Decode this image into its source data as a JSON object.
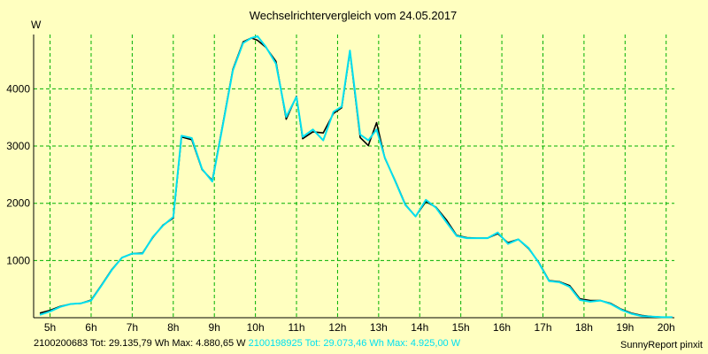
{
  "chart_data": {
    "type": "line",
    "title": "Wechselrichtervergleich vom 24.05.2017",
    "ylabel": "W",
    "xlabel": "",
    "xlim": [
      4.6,
      20.2
    ],
    "ylim": [
      0,
      4950
    ],
    "grid": true,
    "x_ticks": [
      {
        "v": 5,
        "label": "5h"
      },
      {
        "v": 6,
        "label": "6h"
      },
      {
        "v": 7,
        "label": "7h"
      },
      {
        "v": 8,
        "label": "8h"
      },
      {
        "v": 9,
        "label": "9h"
      },
      {
        "v": 10,
        "label": "10h"
      },
      {
        "v": 11,
        "label": "11h"
      },
      {
        "v": 12,
        "label": "12h"
      },
      {
        "v": 13,
        "label": "13h"
      },
      {
        "v": 14,
        "label": "14h"
      },
      {
        "v": 15,
        "label": "15h"
      },
      {
        "v": 16,
        "label": "16h"
      },
      {
        "v": 17,
        "label": "17h"
      },
      {
        "v": 18,
        "label": "18h"
      },
      {
        "v": 19,
        "label": "19h"
      },
      {
        "v": 20,
        "label": "20h"
      }
    ],
    "y_ticks": [
      {
        "v": 1000,
        "label": "1000"
      },
      {
        "v": 2000,
        "label": "2000"
      },
      {
        "v": 3000,
        "label": "3000"
      },
      {
        "v": 4000,
        "label": "4000"
      }
    ],
    "x": [
      4.75,
      5.0,
      5.25,
      5.5,
      5.75,
      6.0,
      6.25,
      6.5,
      6.75,
      7.0,
      7.25,
      7.5,
      7.75,
      8.0,
      8.2,
      8.45,
      8.7,
      8.95,
      9.2,
      9.45,
      9.7,
      9.9,
      10.05,
      10.25,
      10.5,
      10.75,
      11.0,
      11.15,
      11.4,
      11.65,
      11.9,
      12.1,
      12.3,
      12.55,
      12.75,
      12.95,
      13.15,
      13.4,
      13.65,
      13.9,
      14.15,
      14.4,
      14.65,
      14.9,
      15.15,
      15.4,
      15.65,
      15.9,
      16.15,
      16.4,
      16.65,
      16.9,
      17.15,
      17.4,
      17.65,
      17.9,
      18.15,
      18.4,
      18.65,
      18.9,
      19.15,
      19.4,
      19.65,
      19.9,
      20.15
    ],
    "series": [
      {
        "name": "2100200683",
        "color": "#000000",
        "values": [
          80,
          130,
          200,
          240,
          250,
          310,
          570,
          840,
          1050,
          1120,
          1130,
          1400,
          1620,
          1740,
          3160,
          3110,
          2590,
          2400,
          3360,
          4340,
          4820,
          4890,
          4850,
          4730,
          4480,
          3470,
          3870,
          3130,
          3250,
          3230,
          3570,
          3670,
          4650,
          3150,
          3010,
          3410,
          2790,
          2400,
          1980,
          1770,
          2030,
          1930,
          1710,
          1440,
          1400,
          1390,
          1390,
          1470,
          1310,
          1370,
          1210,
          970,
          650,
          630,
          560,
          330,
          300,
          300,
          250,
          150,
          80,
          40,
          20,
          10,
          10
        ],
        "tot": "29.135,79 Wh",
        "max": "4.880,65 W"
      },
      {
        "name": "2100198925",
        "color": "#00e0f0",
        "values": [
          50,
          110,
          190,
          240,
          250,
          300,
          560,
          830,
          1050,
          1120,
          1120,
          1410,
          1610,
          1760,
          3180,
          3140,
          2600,
          2380,
          3340,
          4320,
          4800,
          4890,
          4920,
          4740,
          4440,
          3510,
          3860,
          3160,
          3290,
          3100,
          3600,
          3690,
          4670,
          3200,
          3100,
          3290,
          2800,
          2390,
          1970,
          1770,
          2060,
          1920,
          1670,
          1430,
          1390,
          1390,
          1390,
          1490,
          1290,
          1370,
          1220,
          960,
          640,
          620,
          540,
          310,
          280,
          300,
          240,
          140,
          70,
          30,
          20,
          10,
          10
        ],
        "tot": "29.073,46 Wh",
        "max": "4.925,00 W"
      }
    ]
  },
  "footer": {
    "s1_line": "2100200683 Tot: 29.135,79 Wh Max: 4.880,65 W",
    "s2_line": "2100198925 Tot: 29.073,46 Wh Max: 4.925,00 W",
    "credit": "SunnyReport pinxit"
  }
}
